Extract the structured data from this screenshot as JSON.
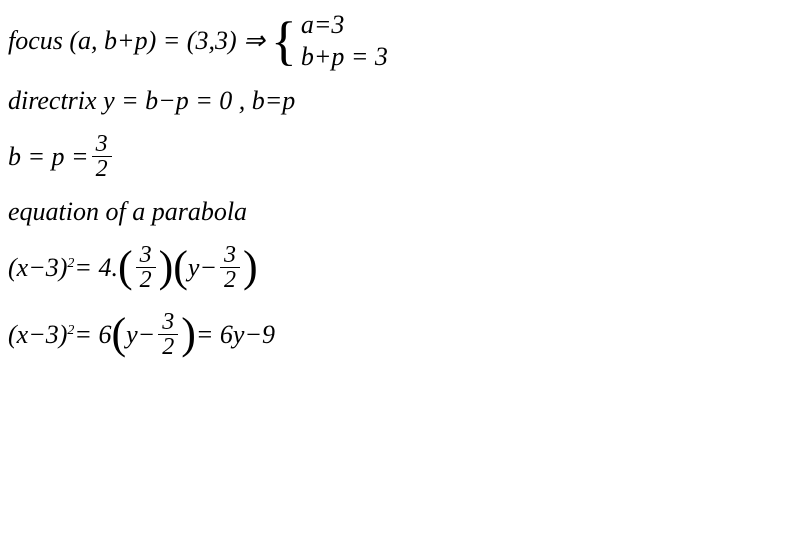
{
  "typography": {
    "font_family": "Georgia, Times New Roman, serif",
    "font_style": "italic",
    "font_size_pt": 26,
    "color": "#000000",
    "background_color": "#ffffff"
  },
  "line1": {
    "text_a": "focus (a, b+p) = (3,3) ⇒",
    "case1": "a=3",
    "case2": "b+p = 3"
  },
  "line2": {
    "text": "directrix y = b−p = 0 , b=p"
  },
  "line3": {
    "text_a": "b = p = ",
    "frac_num": "3",
    "frac_den": "2"
  },
  "line4": {
    "text": "equation of a parabola"
  },
  "line5": {
    "text_a": "(x−3)",
    "exp": "2",
    "text_b": " = 4.",
    "frac1_num": "3",
    "frac1_den": "2",
    "text_c": "y−",
    "frac2_num": "3",
    "frac2_den": "2"
  },
  "line6": {
    "text_a": "(x−3)",
    "exp": "2",
    "text_b": " = 6 ",
    "text_c": "y−",
    "frac_num": "3",
    "frac_den": "2",
    "text_d": "= 6y−9"
  }
}
